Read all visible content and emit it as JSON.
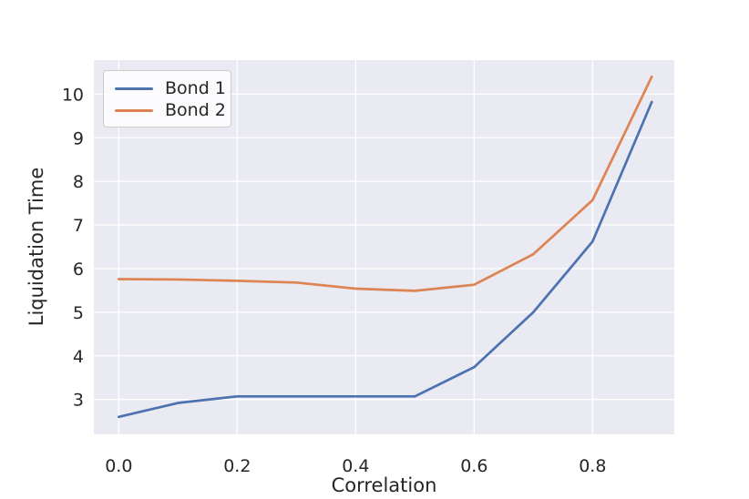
{
  "figure": {
    "background": "#ffffff",
    "plot_background": "#eaeaf2",
    "grid_color": "#ffffff",
    "text_color": "#262626"
  },
  "chart_data": {
    "type": "line",
    "title": "",
    "xlabel": "Correlation",
    "ylabel": "Liquidation Time",
    "grid": true,
    "legend_position": "upper left",
    "x": [
      0.0,
      0.1,
      0.2,
      0.3,
      0.4,
      0.5,
      0.6,
      0.7,
      0.8,
      0.9
    ],
    "series": [
      {
        "name": "Bond 1",
        "color": "#4c72b0",
        "values": [
          2.6,
          2.92,
          3.07,
          3.07,
          3.07,
          3.07,
          3.74,
          5.0,
          6.62,
          9.82
        ]
      },
      {
        "name": "Bond 2",
        "color": "#dd8452",
        "values": [
          5.76,
          5.75,
          5.72,
          5.68,
          5.54,
          5.49,
          5.63,
          6.33,
          7.57,
          10.4
        ]
      }
    ],
    "xlim": [
      -0.042,
      0.938
    ],
    "ylim": [
      2.2,
      10.78
    ],
    "xticks": {
      "values": [
        0.0,
        0.2,
        0.4,
        0.6,
        0.8
      ],
      "labels": [
        "0.0",
        "0.2",
        "0.4",
        "0.6",
        "0.8"
      ]
    },
    "yticks": {
      "values": [
        3,
        4,
        5,
        6,
        7,
        8,
        9,
        10
      ],
      "labels": [
        "3",
        "4",
        "5",
        "6",
        "7",
        "8",
        "9",
        "10"
      ]
    }
  }
}
